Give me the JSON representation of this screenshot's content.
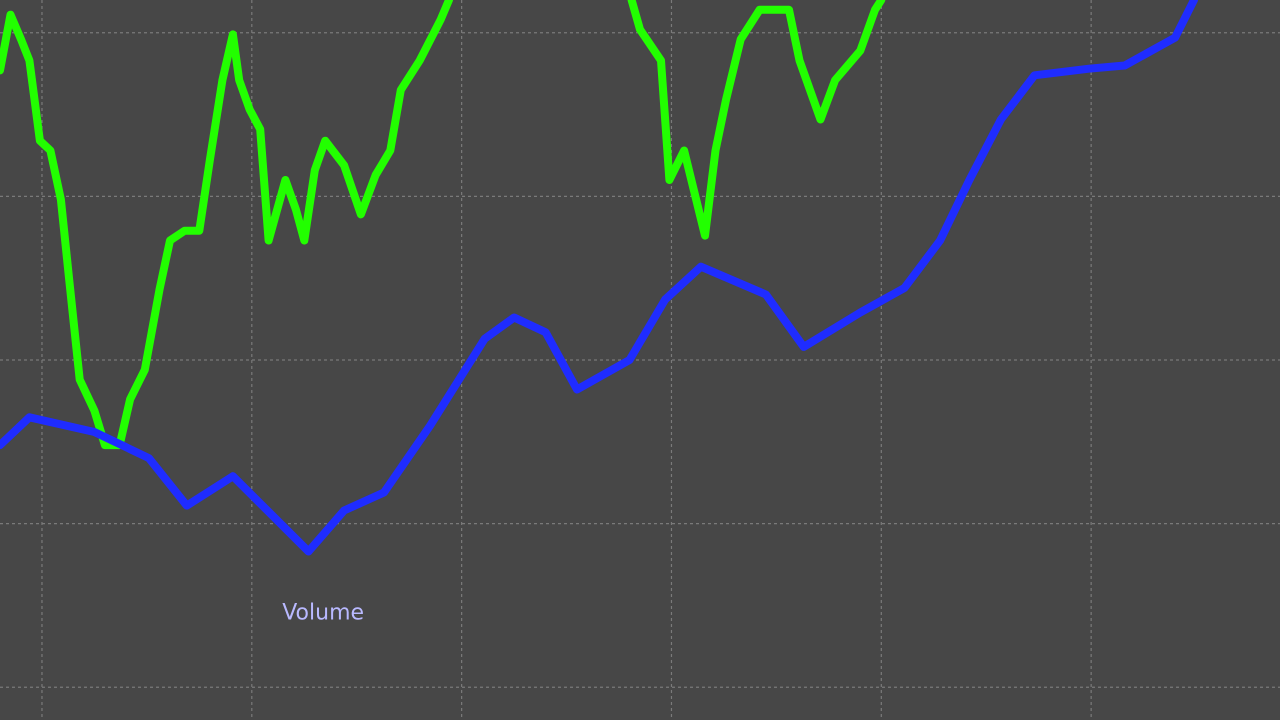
{
  "chart_data": {
    "type": "line",
    "annotation": "Volume",
    "annotation_at": [
      1.34,
      0.45
    ],
    "xlim": [
      -0.2,
      5.9
    ],
    "ylim": [
      -0.2,
      4.2
    ],
    "xticks": [
      0,
      1,
      2,
      3,
      4,
      5
    ],
    "yticks": [
      0,
      1,
      2,
      3,
      4
    ],
    "grid": true,
    "series": [
      {
        "color": "#22ff00",
        "x": [
          -0.2,
          -0.15,
          -0.1,
          -0.06,
          -0.01,
          0.04,
          0.09,
          0.13,
          0.18,
          0.25,
          0.3,
          0.37,
          0.42,
          0.49,
          0.56,
          0.61,
          0.68,
          0.75,
          0.8,
          0.86,
          0.91,
          0.94,
          0.99,
          1.04,
          1.08,
          1.16,
          1.21,
          1.25,
          1.3,
          1.35,
          1.44,
          1.52,
          1.59,
          1.66,
          1.71,
          1.8,
          1.9,
          1.94,
          2.3,
          2.81,
          2.85,
          2.95,
          2.99,
          3.06,
          3.16,
          3.21,
          3.26,
          3.33,
          3.42,
          3.56,
          3.61,
          3.71,
          3.78,
          3.9,
          3.97,
          4.0
        ],
        "values": [
          3.77,
          4.11,
          3.96,
          3.83,
          3.34,
          3.28,
          2.98,
          2.49,
          1.88,
          1.69,
          1.48,
          1.48,
          1.76,
          1.94,
          2.43,
          2.73,
          2.79,
          2.79,
          3.22,
          3.71,
          3.99,
          3.71,
          3.53,
          3.41,
          2.73,
          3.1,
          2.92,
          2.73,
          3.16,
          3.34,
          3.19,
          2.89,
          3.13,
          3.28,
          3.65,
          3.83,
          4.08,
          4.2,
          null,
          4.2,
          4.02,
          3.83,
          3.1,
          3.28,
          2.76,
          3.28,
          3.59,
          3.96,
          4.14,
          4.14,
          3.83,
          3.47,
          3.71,
          3.89,
          4.14,
          4.2
        ]
      },
      {
        "color": "#1f2cff",
        "x": [
          -0.2,
          -0.06,
          0.25,
          0.51,
          0.69,
          0.91,
          1.27,
          1.44,
          1.63,
          1.85,
          2.11,
          2.25,
          2.4,
          2.55,
          2.8,
          2.97,
          3.14,
          3.45,
          3.63,
          3.9,
          4.11,
          4.28,
          4.42,
          4.57,
          4.73,
          4.99,
          5.16,
          5.4,
          5.49
        ],
        "values": [
          1.48,
          1.65,
          1.56,
          1.4,
          1.11,
          1.29,
          0.83,
          1.08,
          1.19,
          1.6,
          2.13,
          2.26,
          2.17,
          1.82,
          2.0,
          2.37,
          2.57,
          2.4,
          2.08,
          2.29,
          2.44,
          2.73,
          3.1,
          3.47,
          3.74,
          3.78,
          3.8,
          3.97,
          4.2
        ]
      }
    ]
  }
}
